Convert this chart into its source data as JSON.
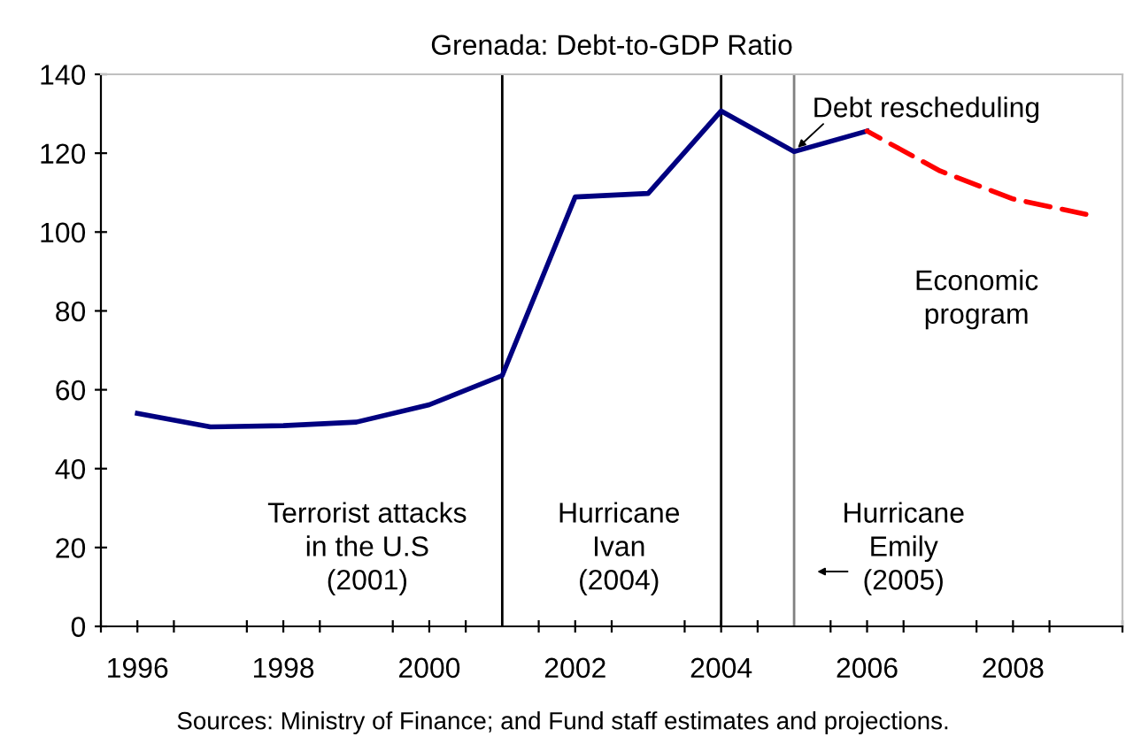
{
  "chart_data": {
    "type": "line",
    "title": "Grenada: Debt-to-GDP Ratio",
    "xlim": [
      1995.5,
      2009.5
    ],
    "xticks": [
      {
        "value": 1995.5,
        "label": null
      },
      {
        "value": 1996,
        "label": "1996"
      },
      {
        "value": 1996.5,
        "label": null
      },
      {
        "value": 1997.5,
        "label": null
      },
      {
        "value": 1998,
        "label": "1998"
      },
      {
        "value": 1998.5,
        "label": null
      },
      {
        "value": 1999.5,
        "label": null
      },
      {
        "value": 2000,
        "label": "2000"
      },
      {
        "value": 2000.5,
        "label": null
      },
      {
        "value": 2001.5,
        "label": null
      },
      {
        "value": 2002,
        "label": "2002"
      },
      {
        "value": 2002.5,
        "label": null
      },
      {
        "value": 2003.5,
        "label": null
      },
      {
        "value": 2004,
        "label": "2004"
      },
      {
        "value": 2004.5,
        "label": null
      },
      {
        "value": 2005.5,
        "label": null
      },
      {
        "value": 2006,
        "label": "2006"
      },
      {
        "value": 2006.5,
        "label": null
      },
      {
        "value": 2007.5,
        "label": null
      },
      {
        "value": 2008,
        "label": "2008"
      },
      {
        "value": 2008.5,
        "label": null
      },
      {
        "value": 2009.5,
        "label": null
      }
    ],
    "ylim": [
      0,
      140
    ],
    "yticks": [
      0,
      20,
      40,
      60,
      80,
      100,
      120,
      140
    ],
    "grid": false,
    "legend": false,
    "marker": "none",
    "series": [
      {
        "color": "#000080",
        "line_style": "solid",
        "x": [
          1996,
          1997,
          1998,
          1999,
          2000,
          2001,
          2002,
          2003,
          2004,
          2005,
          2006
        ],
        "values": [
          54.0,
          50.6,
          50.9,
          51.8,
          56.2,
          63.6,
          108.9,
          109.8,
          130.7,
          120.4,
          125.6
        ]
      },
      {
        "color": "#ff0000",
        "line_style": "dashed",
        "x": [
          2006,
          2007,
          2008,
          2009
        ],
        "values": [
          125.6,
          115.5,
          108.4,
          104.5
        ]
      }
    ],
    "ref_lines": [
      {
        "axis": "x",
        "value": 2001,
        "label": "Terrorist attacks\nin the U.S\n(2001)",
        "color": "#000000"
      },
      {
        "axis": "x",
        "value": 2004,
        "label": "Hurricane\nIvan\n(2004)",
        "color": "#000000"
      },
      {
        "axis": "x",
        "value": 2005,
        "label": "Hurricane\nEmily\n(2005)",
        "color": "#808080"
      }
    ],
    "annotations": [
      {
        "text": "Debt rescheduling",
        "x": 2005,
        "y": 120.4
      },
      "Economic\nprogram",
      "Sources: Ministry of Finance; and Fund staff estimates and projections."
    ]
  }
}
